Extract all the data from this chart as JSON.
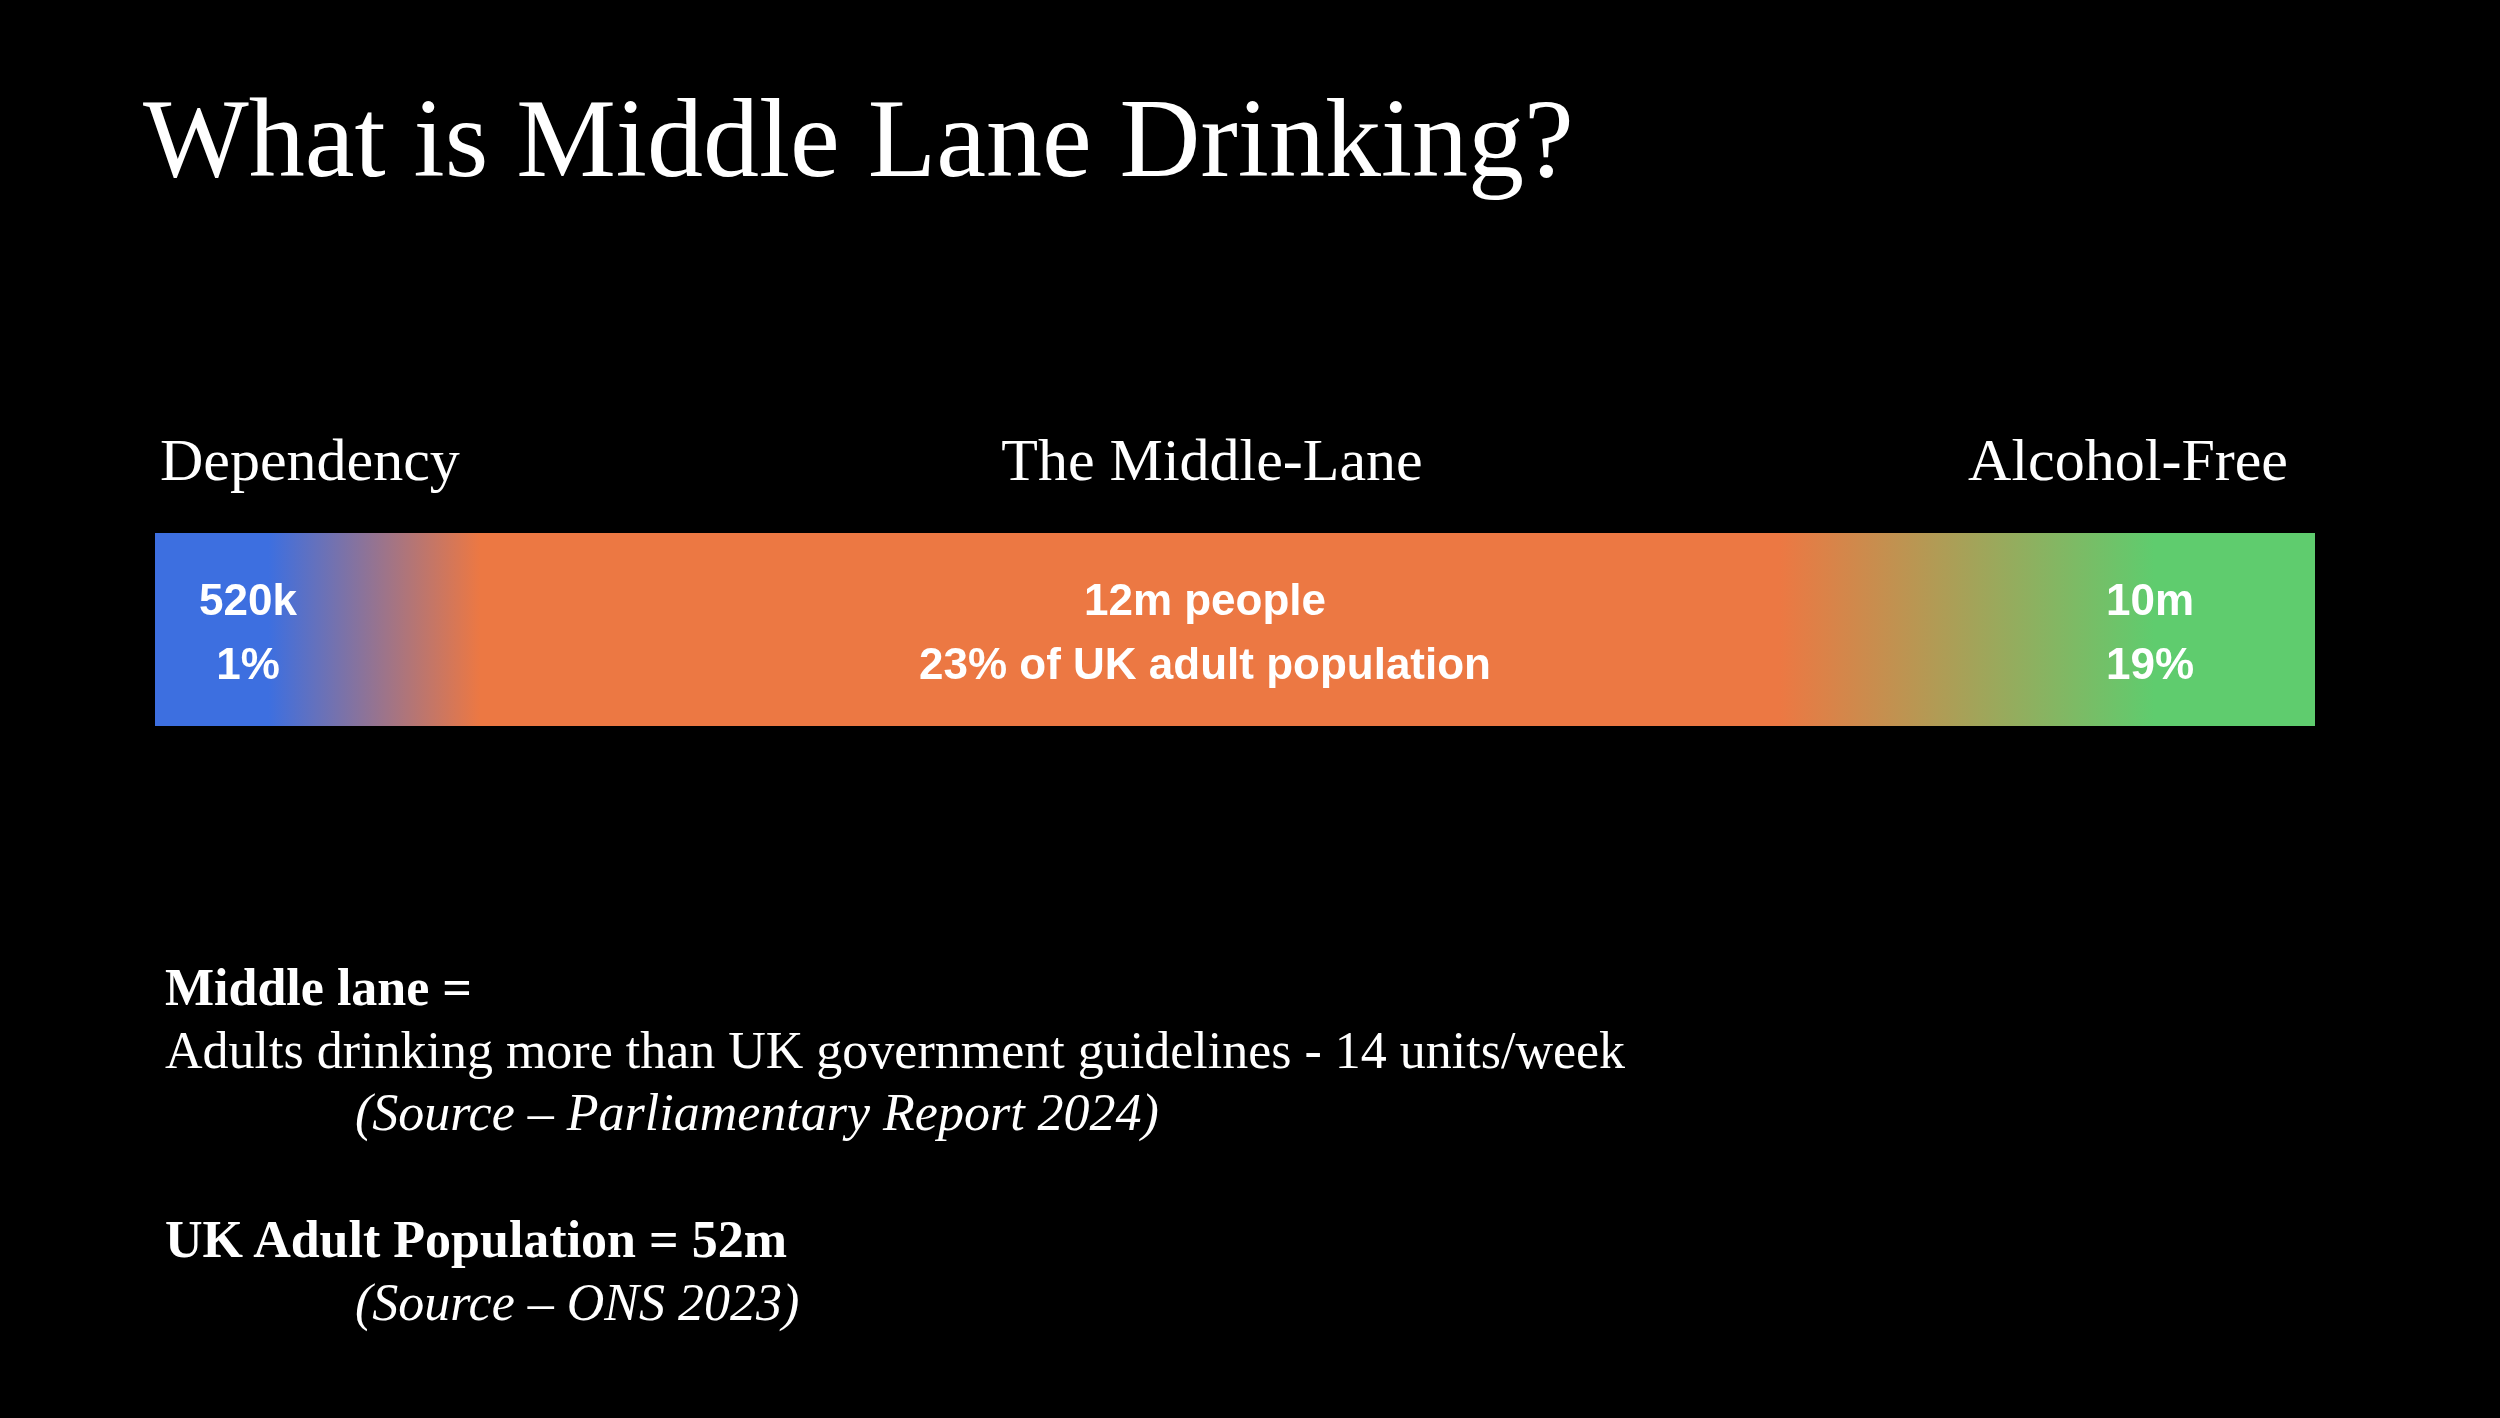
{
  "chart_data": {
    "type": "other",
    "title": "What is Middle Lane Drinking?",
    "categories": [
      "Dependency",
      "The Middle-Lane",
      "Alcohol-Free"
    ],
    "values": [
      1,
      23,
      19
    ],
    "value_labels": [
      "520k\n1%",
      "12m people\n23% of UK adult population",
      "10m\n19%"
    ],
    "colors": [
      "#3d6fe0",
      "#ec7843",
      "#5fcc6e"
    ],
    "annotations": [
      "Middle lane =",
      "Adults drinking more than UK government guidelines - 14 units/week",
      "(Source – Parliamentary Report 2024)",
      "UK Adult Population = 52m",
      "(Source – ONS 2023)"
    ]
  }
}
